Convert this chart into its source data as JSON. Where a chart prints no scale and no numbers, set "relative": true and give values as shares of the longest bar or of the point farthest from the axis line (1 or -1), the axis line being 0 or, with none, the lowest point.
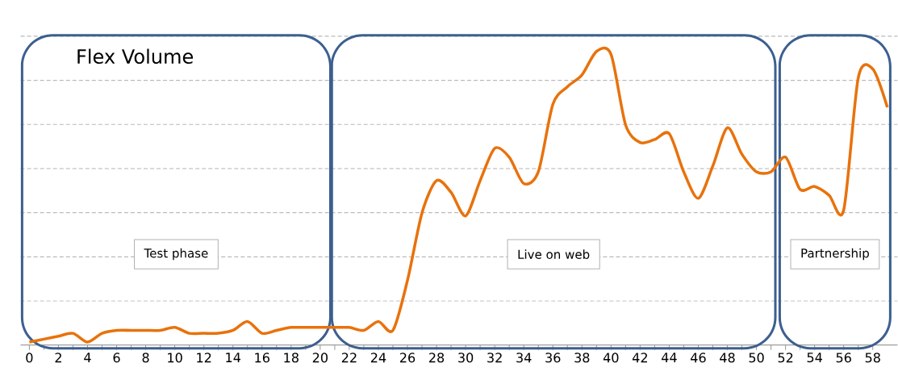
{
  "chart_data": {
    "type": "line",
    "title": "Flex Volume",
    "relative": true,
    "grid": "y",
    "line_style": "solid",
    "marker": "none",
    "x": [
      0,
      1,
      2,
      3,
      4,
      5,
      6,
      7,
      8,
      9,
      10,
      11,
      12,
      13,
      14,
      15,
      16,
      17,
      18,
      19,
      20,
      21,
      22,
      23,
      24,
      25,
      26,
      27,
      28,
      29,
      30,
      31,
      32,
      33,
      34,
      35,
      36,
      37,
      38,
      39,
      40,
      41,
      42,
      43,
      44,
      45,
      46,
      47,
      48,
      49,
      50,
      51,
      52,
      53,
      54,
      55,
      56,
      57,
      58,
      59
    ],
    "series": [
      {
        "color": "#e8720c",
        "values": [
          0.01,
          0.02,
          0.03,
          0.04,
          0.01,
          0.04,
          0.05,
          0.05,
          0.05,
          0.05,
          0.06,
          0.04,
          0.04,
          0.04,
          0.05,
          0.08,
          0.04,
          0.05,
          0.06,
          0.06,
          0.06,
          0.06,
          0.06,
          0.05,
          0.08,
          0.05,
          0.22,
          0.45,
          0.56,
          0.52,
          0.44,
          0.56,
          0.67,
          0.64,
          0.55,
          0.59,
          0.82,
          0.88,
          0.92,
          1,
          0.99,
          0.75,
          0.69,
          0.7,
          0.72,
          0.59,
          0.5,
          0.61,
          0.74,
          0.65,
          0.59,
          0.59,
          0.64,
          0.53,
          0.54,
          0.51,
          0.46,
          0.91,
          0.94,
          0.81
        ]
      }
    ],
    "xlim": [
      -0.6,
      59.7
    ],
    "xticks": [
      0,
      2,
      4,
      6,
      8,
      10,
      12,
      14,
      16,
      18,
      20,
      22,
      24,
      26,
      28,
      30,
      32,
      34,
      36,
      38,
      40,
      42,
      44,
      46,
      48,
      50,
      52,
      54,
      56,
      58
    ],
    "bands": [
      {
        "axis": "x",
        "from": -0.5,
        "to": 20.7,
        "label": "Test phase",
        "color": "#3c5f8f"
      },
      {
        "axis": "x",
        "from": 20.8,
        "to": 51.3,
        "label": "Live on web",
        "color": "#3c5f8f"
      },
      {
        "axis": "x",
        "from": 51.6,
        "to": 59.2,
        "label": "Partnership",
        "color": "#3c5f8f"
      }
    ]
  }
}
